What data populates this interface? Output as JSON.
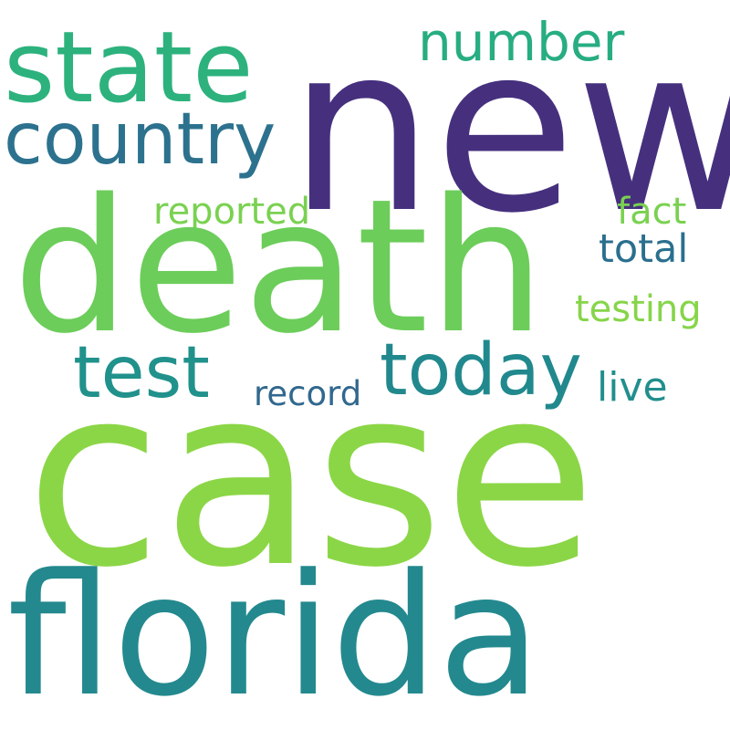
{
  "wordcloud": {
    "words": [
      {
        "id": "new",
        "text": "new",
        "color": "#46307e"
      },
      {
        "id": "state",
        "text": "state",
        "color": "#2db27d"
      },
      {
        "id": "number",
        "text": "number",
        "color": "#27ad81"
      },
      {
        "id": "country",
        "text": "country",
        "color": "#2c728e"
      },
      {
        "id": "reported",
        "text": "reported",
        "color": "#7ad151"
      },
      {
        "id": "fact",
        "text": "fact",
        "color": "#7ad151"
      },
      {
        "id": "death",
        "text": "death",
        "color": "#6ccd5a"
      },
      {
        "id": "total",
        "text": "total",
        "color": "#2a6f8e"
      },
      {
        "id": "testing",
        "text": "testing",
        "color": "#86d549"
      },
      {
        "id": "test",
        "text": "test",
        "color": "#21918c"
      },
      {
        "id": "today",
        "text": "today",
        "color": "#21898d"
      },
      {
        "id": "live",
        "text": "live",
        "color": "#218f8d"
      },
      {
        "id": "record",
        "text": "record",
        "color": "#31688e"
      },
      {
        "id": "case",
        "text": "case",
        "color": "#8bd646"
      },
      {
        "id": "florida",
        "text": "florida",
        "color": "#23898e"
      }
    ]
  }
}
